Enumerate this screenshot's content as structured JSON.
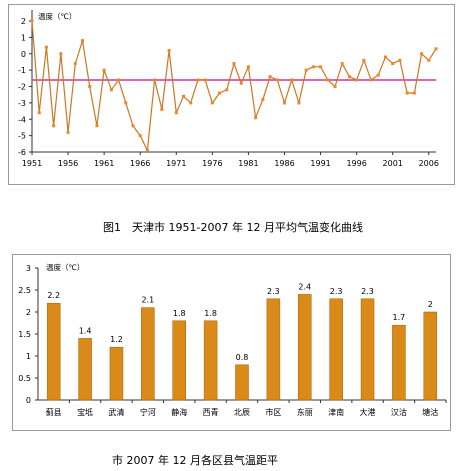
{
  "captions": {
    "fig1": "图1　天津市 1951-2007 年 12 月平均气温变化曲线",
    "fig2": "市 2007 年 12 月各区县气温距平"
  },
  "colors": {
    "line": "#cc7722",
    "marker": "#ee8822",
    "mean_line": "#cc3399",
    "bar": "#d98a18",
    "frame": "#9a9a9a"
  },
  "chart_data": [
    {
      "type": "line",
      "title": "",
      "ylabel": "温度（℃）",
      "xlabel": "",
      "ylim": [
        -6,
        3
      ],
      "yticks": [
        -6,
        -5,
        -4,
        -3,
        -2,
        -1,
        0,
        1,
        2
      ],
      "xlim": [
        1951,
        2007
      ],
      "xticks": [
        1951,
        1956,
        1961,
        1966,
        1971,
        1976,
        1981,
        1986,
        1991,
        1996,
        2001,
        2006
      ],
      "grid": false,
      "mean": -1.6,
      "series": [
        {
          "x": [
            1951,
            1952,
            1953,
            1954,
            1955,
            1956,
            1957,
            1958,
            1959,
            1960,
            1961,
            1962,
            1963,
            1964,
            1965,
            1966,
            1967,
            1968,
            1969,
            1970,
            1971,
            1972,
            1973,
            1974,
            1975,
            1976,
            1977,
            1978,
            1979,
            1980,
            1981,
            1982,
            1983,
            1984,
            1985,
            1986,
            1987,
            1988,
            1989,
            1990,
            1991,
            1992,
            1993,
            1994,
            1995,
            1996,
            1997,
            1998,
            1999,
            2000,
            2001,
            2002,
            2003,
            2004,
            2005,
            2006,
            2007
          ],
          "values": [
            2.0,
            -3.6,
            0.4,
            -4.4,
            0.0,
            -4.8,
            -0.6,
            0.8,
            -2.0,
            -4.4,
            -1.0,
            -2.2,
            -1.6,
            -3.0,
            -4.4,
            -5.0,
            -5.9,
            -1.6,
            -3.4,
            0.2,
            -3.6,
            -2.6,
            -3.0,
            -1.6,
            -1.6,
            -3.0,
            -2.4,
            -2.2,
            -0.6,
            -1.8,
            -0.8,
            -3.9,
            -2.8,
            -1.4,
            -1.6,
            -3.0,
            -1.6,
            -3.0,
            -1.0,
            -0.8,
            -0.8,
            -1.6,
            -2.0,
            -0.6,
            -1.4,
            -1.6,
            -0.4,
            -1.6,
            -1.3,
            -0.2,
            -0.6,
            -0.4,
            -2.4,
            -2.4,
            0.0,
            -0.4,
            0.3
          ]
        }
      ]
    },
    {
      "type": "bar",
      "title": "",
      "ylabel": "温度（℃）",
      "xlabel": "",
      "ylim": [
        0,
        3
      ],
      "yticks": [
        0,
        0.5,
        1,
        1.5,
        2,
        2.5,
        3
      ],
      "grid": false,
      "categories": [
        "蓟县",
        "宝坻",
        "武清",
        "宁河",
        "静海",
        "西青",
        "北辰",
        "市区",
        "东丽",
        "津南",
        "大港",
        "汉沽",
        "塘沽"
      ],
      "values": [
        2.2,
        1.4,
        1.2,
        2.1,
        1.8,
        1.8,
        0.8,
        2.3,
        2.4,
        2.3,
        2.3,
        1.7,
        2.0
      ],
      "data_labels": [
        "2.2",
        "1.4",
        "1.2",
        "2.1",
        "1.8",
        "1.8",
        "0.8",
        "2.3",
        "2.4",
        "2.3",
        "2.3",
        "1.7",
        "2"
      ]
    }
  ]
}
